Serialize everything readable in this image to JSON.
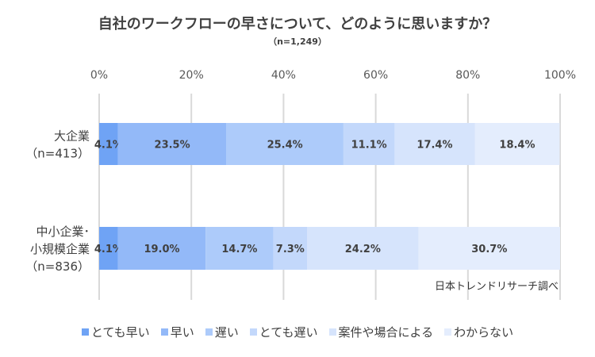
{
  "chart_data": {
    "type": "bar",
    "orientation": "horizontal-stacked-100",
    "title": "自社のワークフローの早さについて、どのように思いますか？",
    "subtitle": "（n=1,249）",
    "categories": [
      [
        "大企業",
        "（n=413）"
      ],
      [
        "中小企業･",
        "小規模企業",
        "（n=836）"
      ]
    ],
    "xticks": [
      "0%",
      "20%",
      "40%",
      "60%",
      "80%",
      "100%"
    ],
    "xlim": [
      0,
      100
    ],
    "grid": true,
    "legend_position": "bottom",
    "series": [
      {
        "name": "とても早い",
        "color": "#6fa3f5",
        "values": [
          4.1,
          4.1
        ]
      },
      {
        "name": "早い",
        "color": "#93b9f8",
        "values": [
          23.5,
          19.0
        ]
      },
      {
        "name": "遅い",
        "color": "#adcbfa",
        "values": [
          25.4,
          14.7
        ]
      },
      {
        "name": "とても遅い",
        "color": "#c3d8fb",
        "values": [
          11.1,
          7.3
        ]
      },
      {
        "name": "案件や場合による",
        "color": "#d6e4fc",
        "values": [
          17.4,
          24.2
        ]
      },
      {
        "name": "わからない",
        "color": "#e4edfd",
        "values": [
          18.4,
          30.7
        ]
      }
    ],
    "source": "日本トレンドリサーチ調べ"
  }
}
